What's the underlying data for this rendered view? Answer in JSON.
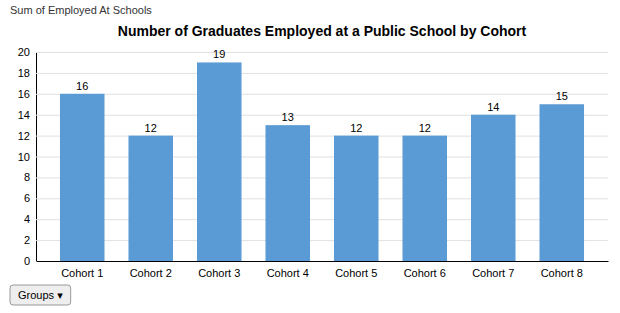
{
  "chart_data": {
    "type": "bar",
    "title": "Number of Graduates Employed at a Public School by Cohort",
    "subtitle": "Sum of Employed At Schools",
    "annotations": [
      "Groups ▾"
    ],
    "categories": [
      "Cohort 1",
      "Cohort 2",
      "Cohort 3",
      "Cohort 4",
      "Cohort 5",
      "Cohort 6",
      "Cohort 7",
      "Cohort 8"
    ],
    "values": [
      16,
      12,
      19,
      13,
      12,
      12,
      14,
      15
    ],
    "color": "#5B9BD5",
    "ylim": [
      0,
      20
    ],
    "yticks": [
      0,
      2,
      4,
      6,
      8,
      10,
      12,
      14,
      16,
      18,
      20
    ],
    "grid": true,
    "data_labels": true
  }
}
